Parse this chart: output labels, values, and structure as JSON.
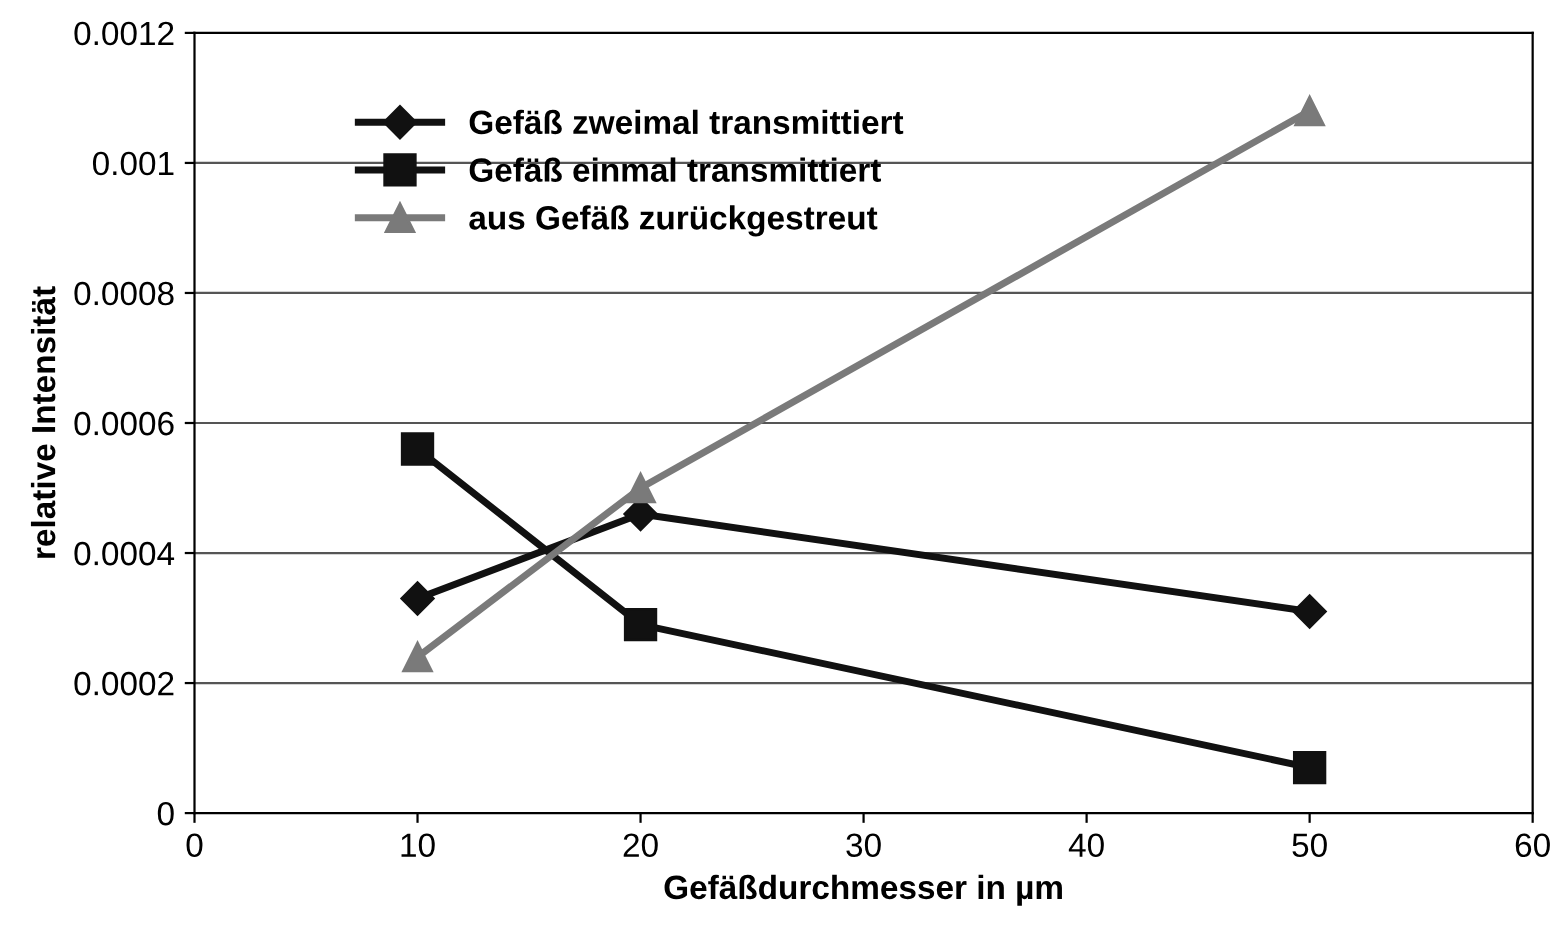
{
  "chart_data": {
    "type": "line",
    "x": [
      10,
      20,
      50
    ],
    "xlabel": "Gefäßdurchmesser in µm",
    "ylabel": "relative Intensität",
    "series": [
      {
        "name": "Gefäß zweimal transmittiert",
        "color": "#111111",
        "marker": "diamond",
        "values": [
          0.00033,
          0.00046,
          0.00031
        ]
      },
      {
        "name": "Gefäß einmal transmittiert",
        "color": "#111111",
        "marker": "square",
        "values": [
          0.00056,
          0.00029,
          7e-05
        ]
      },
      {
        "name": "aus Gefäß zurückgestreut",
        "color": "#7a7a7a",
        "marker": "triangle",
        "values": [
          0.00024,
          0.0005,
          0.00108
        ]
      }
    ],
    "xlim": [
      0,
      60
    ],
    "xticks": [
      0,
      10,
      20,
      30,
      40,
      50,
      60
    ],
    "ylim": [
      0,
      0.0012
    ],
    "yticks": [
      0,
      0.0002,
      0.0004,
      0.0006,
      0.0008,
      0.001,
      0.0012
    ],
    "grid": "y",
    "legend": "top left"
  }
}
